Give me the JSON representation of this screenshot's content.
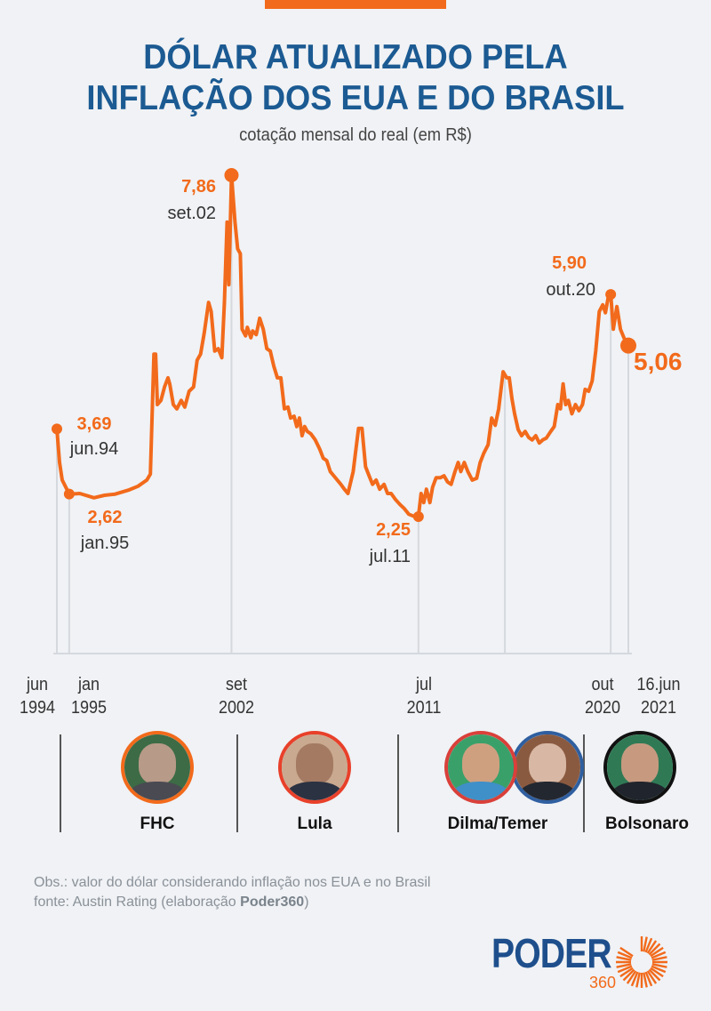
{
  "header": {
    "title_line1": "DÓLAR ATUALIZADO PELA",
    "title_line2": "INFLAÇÃO DOS EUA E DO BRASIL",
    "subtitle": "cotação mensal do real (em R$)"
  },
  "colors": {
    "line": "#f26a1b",
    "title": "#1b5a92",
    "background": "#f0f2f5",
    "gridline": "#d5d9de"
  },
  "chart_data": {
    "type": "line",
    "title": "Dólar atualizado pela inflação dos EUA e do Brasil",
    "subtitle": "cotação mensal do real (em R$)",
    "xlabel": "",
    "ylabel": "R$",
    "x_unit": "months since jun/1994",
    "ylim": [
      0,
      7.86
    ],
    "grid": false,
    "series": [
      {
        "name": "Dólar (R$) atualizado",
        "points": [
          [
            0,
            3.69
          ],
          [
            1.5,
            3.14
          ],
          [
            3,
            2.85
          ],
          [
            7,
            2.62
          ],
          [
            13,
            2.63
          ],
          [
            21,
            2.56
          ],
          [
            27,
            2.6
          ],
          [
            33,
            2.62
          ],
          [
            41,
            2.69
          ],
          [
            46,
            2.75
          ],
          [
            51,
            2.85
          ],
          [
            53,
            2.95
          ],
          [
            55,
            4.92
          ],
          [
            56,
            4.92
          ],
          [
            57,
            4.09
          ],
          [
            59,
            4.16
          ],
          [
            61,
            4.38
          ],
          [
            63,
            4.53
          ],
          [
            64,
            4.43
          ],
          [
            66,
            4.09
          ],
          [
            68,
            4.02
          ],
          [
            70.5,
            4.16
          ],
          [
            72.5,
            4.05
          ],
          [
            75,
            4.31
          ],
          [
            77.5,
            4.38
          ],
          [
            79.5,
            4.82
          ],
          [
            81.5,
            4.92
          ],
          [
            83.5,
            5.26
          ],
          [
            86,
            5.77
          ],
          [
            87.5,
            5.62
          ],
          [
            89.5,
            4.97
          ],
          [
            91.5,
            5.01
          ],
          [
            93.5,
            4.86
          ],
          [
            95,
            5.77
          ],
          [
            96.5,
            7.09
          ],
          [
            97.5,
            6.06
          ],
          [
            99,
            7.86
          ],
          [
            101,
            7.09
          ],
          [
            102.5,
            6.65
          ],
          [
            104,
            6.57
          ],
          [
            105,
            5.33
          ],
          [
            107,
            5.22
          ],
          [
            108,
            5.36
          ],
          [
            110,
            5.19
          ],
          [
            111,
            5.3
          ],
          [
            113,
            5.24
          ],
          [
            115,
            5.51
          ],
          [
            117,
            5.33
          ],
          [
            119,
            5.01
          ],
          [
            121,
            4.97
          ],
          [
            123,
            4.72
          ],
          [
            125,
            4.53
          ],
          [
            127,
            4.53
          ],
          [
            129,
            4.02
          ],
          [
            131,
            4.05
          ],
          [
            132.5,
            3.87
          ],
          [
            134.5,
            3.9
          ],
          [
            136,
            3.73
          ],
          [
            137.5,
            3.87
          ],
          [
            139,
            3.58
          ],
          [
            140.5,
            3.73
          ],
          [
            142,
            3.65
          ],
          [
            144,
            3.61
          ],
          [
            146.5,
            3.51
          ],
          [
            149,
            3.36
          ],
          [
            151,
            3.21
          ],
          [
            153,
            3.17
          ],
          [
            155,
            2.99
          ],
          [
            157,
            2.92
          ],
          [
            159,
            2.85
          ],
          [
            161,
            2.78
          ],
          [
            163,
            2.7
          ],
          [
            165,
            2.63
          ],
          [
            168,
            2.99
          ],
          [
            171,
            3.7
          ],
          [
            173,
            3.7
          ],
          [
            175,
            3.07
          ],
          [
            177,
            2.92
          ],
          [
            179,
            2.78
          ],
          [
            181,
            2.85
          ],
          [
            183,
            2.7
          ],
          [
            185.5,
            2.78
          ],
          [
            187.5,
            2.63
          ],
          [
            189.5,
            2.63
          ],
          [
            192,
            2.53
          ],
          [
            194.5,
            2.45
          ],
          [
            197,
            2.38
          ],
          [
            199.5,
            2.29
          ],
          [
            202,
            2.26
          ],
          [
            205,
            2.25
          ],
          [
            206.5,
            2.63
          ],
          [
            208,
            2.48
          ],
          [
            209.5,
            2.7
          ],
          [
            211.5,
            2.48
          ],
          [
            213,
            2.73
          ],
          [
            215,
            2.89
          ],
          [
            217.5,
            2.89
          ],
          [
            219.5,
            2.92
          ],
          [
            221.5,
            2.82
          ],
          [
            223.5,
            2.78
          ],
          [
            225.5,
            2.97
          ],
          [
            227.5,
            3.14
          ],
          [
            229,
            2.99
          ],
          [
            231,
            3.14
          ],
          [
            233,
            2.99
          ],
          [
            235.5,
            2.85
          ],
          [
            238,
            2.88
          ],
          [
            240,
            3.14
          ],
          [
            242,
            3.29
          ],
          [
            244.5,
            3.43
          ],
          [
            246.5,
            3.87
          ],
          [
            248.5,
            3.75
          ],
          [
            250.5,
            4.02
          ],
          [
            253,
            4.63
          ],
          [
            255,
            4.53
          ],
          [
            256.5,
            4.53
          ],
          [
            258,
            4.19
          ],
          [
            259.5,
            3.94
          ],
          [
            261.5,
            3.68
          ],
          [
            263.5,
            3.58
          ],
          [
            265.5,
            3.65
          ],
          [
            267.5,
            3.55
          ],
          [
            269.5,
            3.51
          ],
          [
            271.5,
            3.58
          ],
          [
            273.5,
            3.46
          ],
          [
            275.5,
            3.51
          ],
          [
            277.5,
            3.54
          ],
          [
            280,
            3.65
          ],
          [
            282,
            3.73
          ],
          [
            284,
            4.09
          ],
          [
            285.5,
            4.02
          ],
          [
            287,
            4.43
          ],
          [
            288.5,
            4.09
          ],
          [
            290,
            4.16
          ],
          [
            292,
            3.94
          ],
          [
            294,
            4.09
          ],
          [
            296,
            3.99
          ],
          [
            298,
            4.09
          ],
          [
            299.5,
            4.34
          ],
          [
            301.5,
            4.31
          ],
          [
            303.5,
            4.48
          ],
          [
            305.5,
            4.97
          ],
          [
            307.5,
            5.62
          ],
          [
            309.5,
            5.73
          ],
          [
            311,
            5.6
          ],
          [
            313,
            5.92
          ],
          [
            314,
            5.9
          ],
          [
            315.5,
            5.33
          ],
          [
            317.5,
            5.7
          ],
          [
            319.5,
            5.33
          ],
          [
            321.5,
            5.19
          ],
          [
            324,
            5.06
          ]
        ]
      }
    ],
    "annotations": [
      {
        "month": 0,
        "value_label": "3,69",
        "date_label": "jun.94",
        "value": 3.69
      },
      {
        "month": 7,
        "value_label": "2,62",
        "date_label": "jan.95",
        "value": 2.62
      },
      {
        "month": 99,
        "value_label": "7,86",
        "date_label": "set.02",
        "value": 7.86
      },
      {
        "month": 205,
        "value_label": "2,25",
        "date_label": "jul.11",
        "value": 2.25
      },
      {
        "month": 314,
        "value_label": "5,90",
        "date_label": "out.20",
        "value": 5.9
      },
      {
        "month": 324,
        "value_label": "5,06",
        "date_label": "",
        "value": 5.06
      }
    ],
    "x_ticks": [
      {
        "month": 0,
        "line1": "jun",
        "line2": "1994"
      },
      {
        "month": 7,
        "line1": "jan",
        "line2": "1995"
      },
      {
        "month": 99,
        "line1": "set",
        "line2": "2002"
      },
      {
        "month": 205,
        "line1": "jul",
        "line2": "2011"
      },
      {
        "month": 314,
        "line1": "out",
        "line2": "2020"
      },
      {
        "month": 324,
        "line1": "16.jun",
        "line2": "2021"
      }
    ],
    "extra_gridline_months": [
      254
    ]
  },
  "presidents": [
    {
      "name": "FHC",
      "ring": "#f26a1b"
    },
    {
      "name": "Lula",
      "ring": "#e8402a"
    },
    {
      "name": "Dilma/Temer",
      "ring": "#d9403a",
      "ring2": "#2f5fa0"
    },
    {
      "name": "Bolsonaro",
      "ring": "#111111"
    }
  ],
  "footer": {
    "note": "Obs.: valor do dólar considerando inflação nos EUA e no Brasil",
    "source_prefix": "fonte: Austin Rating (elaboração ",
    "source_brand": "Poder360",
    "source_suffix": ")"
  },
  "logo": {
    "text": "PODER",
    "sub": "360"
  }
}
